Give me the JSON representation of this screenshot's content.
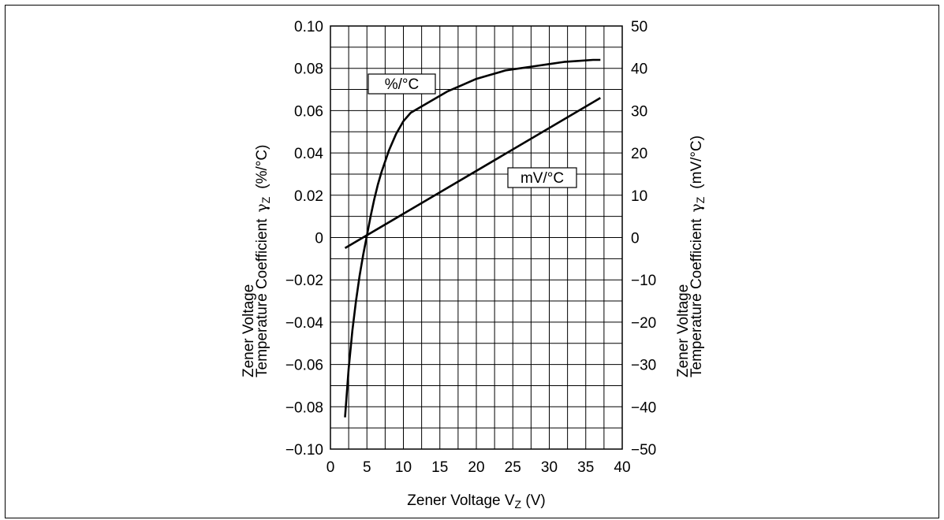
{
  "chart_data": {
    "type": "line",
    "xlabel": "Zener Voltage V",
    "xlabel_sub": "Z",
    "xlabel_unit": " (V)",
    "ylabel_left_line1": "Zener Voltage",
    "ylabel_left_line2": "Temperature Coefficient",
    "ylabel_left_symbol": "γ",
    "ylabel_left_sub": "Z",
    "ylabel_left_unit": "(%/°C)",
    "ylabel_right_line1": "Zener Voltage",
    "ylabel_right_line2": "Temperature Coefficient",
    "ylabel_right_symbol": "γ",
    "ylabel_right_sub": "Z",
    "ylabel_right_unit": "(mV/°C)",
    "xlim": [
      0,
      40
    ],
    "ylim_left": [
      -0.1,
      0.1
    ],
    "ylim_right": [
      -50,
      50
    ],
    "grid": true,
    "x_ticks": [
      "0",
      "5",
      "10",
      "15",
      "20",
      "25",
      "30",
      "35",
      "40"
    ],
    "y_left_ticks": [
      "0.10",
      "0.08",
      "0.06",
      "0.04",
      "0.02",
      "0",
      "−0.02",
      "−0.04",
      "−0.06",
      "−0.08",
      "−0.10"
    ],
    "y_right_ticks": [
      "50",
      "40",
      "30",
      "20",
      "10",
      "0",
      "−10",
      "−20",
      "−30",
      "−40",
      "−50"
    ],
    "series": [
      {
        "name": "%/°C",
        "axis": "left",
        "x": [
          2.0,
          2.5,
          3.0,
          3.5,
          4.0,
          4.5,
          5.0,
          5.5,
          6.0,
          6.5,
          7.0,
          7.5,
          8.0,
          8.5,
          9.0,
          9.5,
          10.0,
          11.0,
          12.0,
          14.0,
          16.0,
          18.0,
          20.0,
          22.0,
          24.0,
          26.0,
          28.0,
          30.0,
          32.0,
          34.0,
          36.0,
          37.0
        ],
        "y": [
          -0.085,
          -0.062,
          -0.044,
          -0.03,
          -0.018,
          -0.008,
          0.001,
          0.01,
          0.018,
          0.025,
          0.031,
          0.036,
          0.041,
          0.045,
          0.049,
          0.052,
          0.055,
          0.059,
          0.061,
          0.065,
          0.069,
          0.072,
          0.075,
          0.077,
          0.079,
          0.08,
          0.081,
          0.082,
          0.083,
          0.0835,
          0.084,
          0.084
        ]
      },
      {
        "name": "mV/°C",
        "axis": "right",
        "x": [
          2.0,
          37.0
        ],
        "y": [
          -2.5,
          33.0
        ]
      }
    ],
    "annotations": [
      "%/°C",
      "mV/°C"
    ]
  }
}
